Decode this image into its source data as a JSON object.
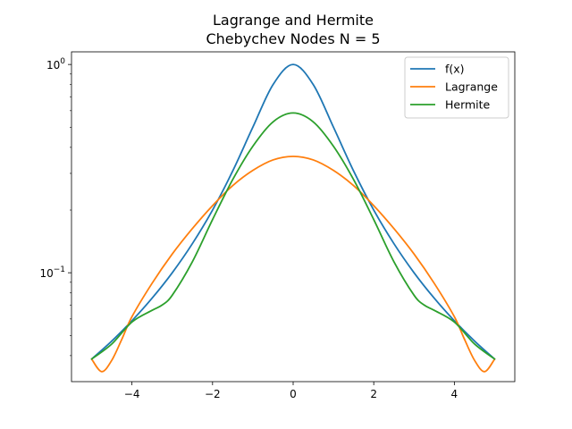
{
  "chart_data": {
    "type": "line",
    "title": "Lagrange and Hermite",
    "subtitle": "Chebychev Nodes N = 5",
    "xlabel": "",
    "ylabel": "",
    "xlim": [
      -5.5,
      5.5
    ],
    "ylim": [
      0.03,
      1.15
    ],
    "yscale": "log",
    "grid": false,
    "legend_position": "top-right",
    "x_ticks": [
      {
        "value": -4,
        "label": "−4"
      },
      {
        "value": -2,
        "label": "−2"
      },
      {
        "value": 0,
        "label": "0"
      },
      {
        "value": 2,
        "label": "2"
      },
      {
        "value": 4,
        "label": "4"
      }
    ],
    "y_ticks": [
      {
        "value": 1,
        "base": "10",
        "exp": "0"
      },
      {
        "value": 0.1,
        "base": "10",
        "exp": "−1"
      }
    ],
    "series": [
      {
        "name": "f(x)",
        "color": "#1f77b4",
        "x": [
          -5,
          -4.5,
          -4,
          -3.5,
          -3,
          -2.5,
          -2,
          -1.5,
          -1,
          -0.5,
          0,
          0.5,
          1,
          1.5,
          2,
          2.5,
          3,
          3.5,
          4,
          4.5,
          5
        ],
        "y": [
          0.0385,
          0.047,
          0.0588,
          0.0755,
          0.1,
          0.138,
          0.2,
          0.308,
          0.5,
          0.8,
          1.0,
          0.8,
          0.5,
          0.308,
          0.2,
          0.138,
          0.1,
          0.0755,
          0.0588,
          0.047,
          0.0385
        ]
      },
      {
        "name": "Lagrange",
        "color": "#ff7f0e",
        "x": [
          -5,
          -4.75,
          -4.5,
          -4.25,
          -4,
          -3.5,
          -3,
          -2.5,
          -2,
          -1.5,
          -1,
          -0.5,
          0,
          0.5,
          1,
          1.5,
          2,
          2.5,
          3,
          3.5,
          4,
          4.25,
          4.5,
          4.75,
          5
        ],
        "y": [
          0.0385,
          0.0335,
          0.038,
          0.048,
          0.0615,
          0.089,
          0.123,
          0.163,
          0.21,
          0.262,
          0.31,
          0.348,
          0.362,
          0.348,
          0.31,
          0.262,
          0.21,
          0.163,
          0.123,
          0.089,
          0.0615,
          0.048,
          0.038,
          0.0335,
          0.0385
        ]
      },
      {
        "name": "Hermite",
        "color": "#2ca02c",
        "x": [
          -5,
          -4.5,
          -4,
          -3.5,
          -3.25,
          -3,
          -2.5,
          -2,
          -1.5,
          -1,
          -0.5,
          0,
          0.5,
          1,
          1.5,
          2,
          2.5,
          3,
          3.25,
          3.5,
          4,
          4.5,
          5
        ],
        "y": [
          0.0385,
          0.0455,
          0.058,
          0.066,
          0.07,
          0.078,
          0.113,
          0.18,
          0.28,
          0.405,
          0.53,
          0.585,
          0.53,
          0.405,
          0.28,
          0.18,
          0.113,
          0.078,
          0.07,
          0.066,
          0.058,
          0.0455,
          0.0385
        ]
      }
    ]
  }
}
